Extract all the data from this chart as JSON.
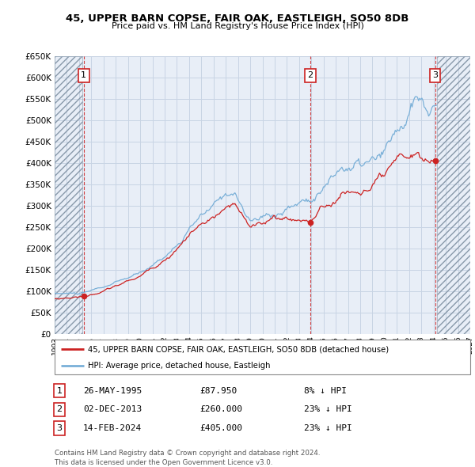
{
  "title": "45, UPPER BARN COPSE, FAIR OAK, EASTLEIGH, SO50 8DB",
  "subtitle": "Price paid vs. HM Land Registry's House Price Index (HPI)",
  "ylim": [
    0,
    650000
  ],
  "yticks": [
    0,
    50000,
    100000,
    150000,
    200000,
    250000,
    300000,
    350000,
    400000,
    450000,
    500000,
    550000,
    600000,
    650000
  ],
  "ytick_labels": [
    "£0",
    "£50K",
    "£100K",
    "£150K",
    "£200K",
    "£250K",
    "£300K",
    "£350K",
    "£400K",
    "£450K",
    "£500K",
    "£550K",
    "£600K",
    "£650K"
  ],
  "xlim_start": 1993.0,
  "xlim_end": 2027.0,
  "xtick_years": [
    1993,
    1994,
    1995,
    1996,
    1997,
    1998,
    1999,
    2000,
    2001,
    2002,
    2003,
    2004,
    2005,
    2006,
    2007,
    2008,
    2009,
    2010,
    2011,
    2012,
    2013,
    2014,
    2015,
    2016,
    2017,
    2018,
    2019,
    2020,
    2021,
    2022,
    2023,
    2024,
    2025,
    2026,
    2027
  ],
  "background_color": "#ffffff",
  "plot_background": "#e8eef7",
  "grid_color": "#c8d4e4",
  "hatch_region_end": 1995.25,
  "hatch_region_start_right": 2024.25,
  "sale_color": "#cc2222",
  "hpi_color": "#7ab0d8",
  "sale_label": "45, UPPER BARN COPSE, FAIR OAK, EASTLEIGH, SO50 8DB (detached house)",
  "hpi_label": "HPI: Average price, detached house, Eastleigh",
  "transactions": [
    {
      "num": 1,
      "date": "26-MAY-1995",
      "price": 87950,
      "year": 1995.38,
      "hpi_pct": "8% ↓ HPI"
    },
    {
      "num": 2,
      "date": "02-DEC-2013",
      "price": 260000,
      "year": 2013.92,
      "hpi_pct": "23% ↓ HPI"
    },
    {
      "num": 3,
      "date": "14-FEB-2024",
      "price": 405000,
      "year": 2024.12,
      "hpi_pct": "23% ↓ HPI"
    }
  ],
  "footer": "Contains HM Land Registry data © Crown copyright and database right 2024.\nThis data is licensed under the Open Government Licence v3.0."
}
